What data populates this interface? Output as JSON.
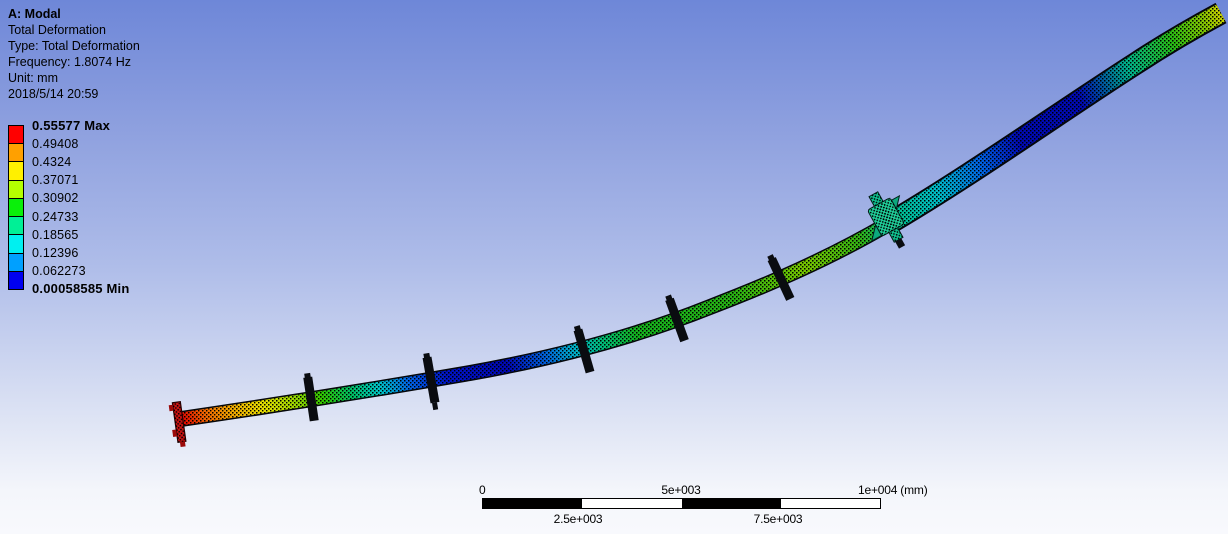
{
  "header": {
    "title": "A: Modal",
    "lines": [
      "Total Deformation",
      "Type: Total Deformation",
      "Frequency: 1.8074 Hz",
      "Unit: mm",
      "2018/5/14 20:59"
    ]
  },
  "legend": {
    "labels": [
      "0.55577 Max",
      "0.49408",
      "0.4324",
      "0.37071",
      "0.30902",
      "0.24733",
      "0.18565",
      "0.12396",
      "0.062273",
      "0.00058585 Min"
    ],
    "band_colors": [
      "#FF0000",
      "#FFA000",
      "#FFF000",
      "#B4FF00",
      "#0AF00A",
      "#00F096",
      "#00F0F0",
      "#00A0FF",
      "#0000F0"
    ]
  },
  "scalebar": {
    "top_ticks": [
      "0",
      "5e+003",
      "1e+004 (mm)"
    ],
    "bottom_ticks": [
      "2.5e+003",
      "7.5e+003"
    ],
    "segment_colors": [
      "#000000",
      "#FFFFFF",
      "#000000",
      "#FFFFFF"
    ]
  },
  "model": {
    "name": "deformed-mast-total-deformation",
    "background_top": "#6E87D8",
    "background_bottom": "#F8F9FD",
    "contour_stops": [
      {
        "t": 0.0,
        "c": "#E00000"
      },
      {
        "t": 0.02,
        "c": "#F06000"
      },
      {
        "t": 0.045,
        "c": "#F0A800"
      },
      {
        "t": 0.072,
        "c": "#E8E000"
      },
      {
        "t": 0.1,
        "c": "#9ED800"
      },
      {
        "t": 0.125,
        "c": "#30C800"
      },
      {
        "t": 0.15,
        "c": "#00C060"
      },
      {
        "t": 0.175,
        "c": "#00C8C8"
      },
      {
        "t": 0.202,
        "c": "#0064E6"
      },
      {
        "t": 0.235,
        "c": "#0014C8"
      },
      {
        "t": 0.29,
        "c": "#0008B4"
      },
      {
        "t": 0.325,
        "c": "#0064DC"
      },
      {
        "t": 0.352,
        "c": "#00B4C8"
      },
      {
        "t": 0.377,
        "c": "#00BE78"
      },
      {
        "t": 0.408,
        "c": "#14B41E"
      },
      {
        "t": 0.5,
        "c": "#28B414"
      },
      {
        "t": 0.57,
        "c": "#78C800"
      },
      {
        "t": 0.625,
        "c": "#32B414"
      },
      {
        "t": 0.66,
        "c": "#00BE8C"
      },
      {
        "t": 0.705,
        "c": "#00BEC8"
      },
      {
        "t": 0.75,
        "c": "#0064E6"
      },
      {
        "t": 0.79,
        "c": "#000AB4"
      },
      {
        "t": 0.855,
        "c": "#000AB4"
      },
      {
        "t": 0.905,
        "c": "#00B48C"
      },
      {
        "t": 0.95,
        "c": "#28BE14"
      },
      {
        "t": 0.985,
        "c": "#8CC800"
      },
      {
        "t": 1.0,
        "c": "#C8D200"
      }
    ]
  }
}
